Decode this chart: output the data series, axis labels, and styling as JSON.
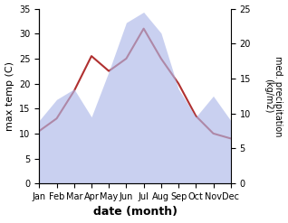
{
  "months": [
    "Jan",
    "Feb",
    "Mar",
    "Apr",
    "May",
    "Jun",
    "Jul",
    "Aug",
    "Sep",
    "Oct",
    "Nov",
    "Dec"
  ],
  "max_temp": [
    10.5,
    13.0,
    18.5,
    25.5,
    22.5,
    25.0,
    31.0,
    25.0,
    20.0,
    13.5,
    10.0,
    9.0
  ],
  "precipitation": [
    9.0,
    12.0,
    13.5,
    9.5,
    16.0,
    23.0,
    24.5,
    21.5,
    13.5,
    9.5,
    12.5,
    9.0
  ],
  "temp_color": "#b03030",
  "precip_fill_color": "#adb8e8",
  "precip_fill_alpha": 0.65,
  "xlabel": "date (month)",
  "ylabel_left": "max temp (C)",
  "ylabel_right": "med. precipitation\n(kg/m2)",
  "ylim_left": [
    0,
    35
  ],
  "ylim_right": [
    0,
    25
  ],
  "yticks_left": [
    0,
    5,
    10,
    15,
    20,
    25,
    30,
    35
  ],
  "yticks_right": [
    0,
    5,
    10,
    15,
    20,
    25
  ],
  "background_color": "#ffffff"
}
